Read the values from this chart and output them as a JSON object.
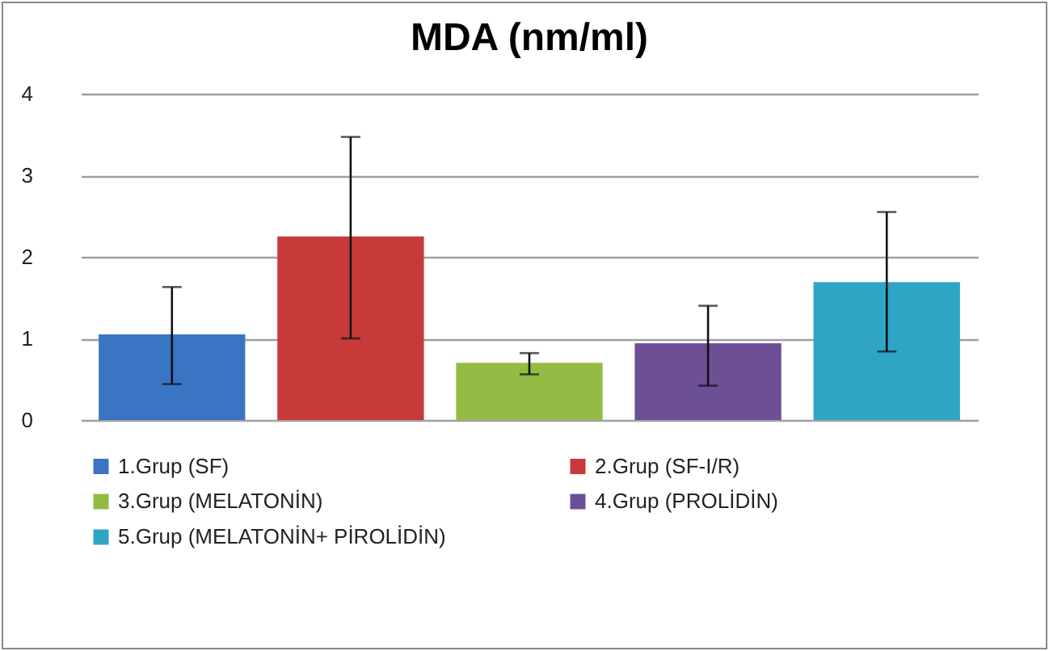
{
  "chart_data": {
    "type": "bar",
    "title": "MDA (nm/ml)",
    "categories": [
      null,
      null,
      null,
      null,
      null
    ],
    "series": [
      {
        "name": "1.Grup (SF)",
        "color": "#3a75c4",
        "values": [
          1.05,
          null,
          null,
          null,
          null
        ],
        "errors": [
          [
            0.44,
            1.63
          ],
          null,
          null,
          null,
          null
        ]
      },
      {
        "name": "2.Grup (SF-I/R)",
        "color": "#c8393a",
        "values": [
          null,
          2.25,
          null,
          null,
          null
        ],
        "errors": [
          null,
          [
            1.0,
            3.47
          ],
          null,
          null,
          null
        ]
      },
      {
        "name": "3.Grup (MELATONİN)",
        "color": "#93bb43",
        "values": [
          null,
          null,
          0.7,
          null,
          null
        ],
        "errors": [
          null,
          null,
          [
            0.56,
            0.82
          ],
          null,
          null
        ]
      },
      {
        "name": "4.Grup (PROLİDİN)",
        "color": "#6d4f96",
        "values": [
          null,
          null,
          null,
          0.94,
          null
        ],
        "errors": [
          null,
          null,
          null,
          [
            0.42,
            1.4
          ],
          null
        ]
      },
      {
        "name": "5.Grup (MELATONİN+ PİROLİDİN)",
        "color": "#2fa5c6",
        "values": [
          null,
          null,
          null,
          null,
          1.69
        ],
        "errors": [
          null,
          null,
          null,
          null,
          [
            0.84,
            2.55
          ]
        ]
      }
    ],
    "ylim": [
      0,
      4
    ],
    "yticks": [
      0,
      1,
      2,
      3,
      4
    ],
    "grid": "y",
    "legend": "bottom"
  }
}
